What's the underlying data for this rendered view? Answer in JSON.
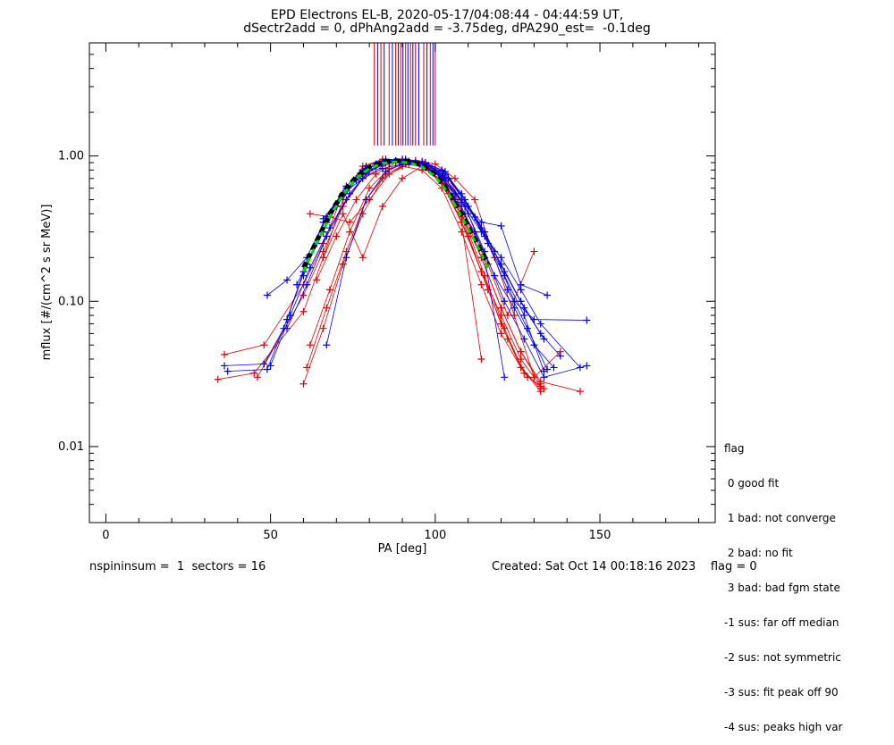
{
  "header": {
    "title_line1": "EPD Electrons EL-B, 2020-05-17/04:08:44 - 04:44:59 UT,",
    "title_line2": "dSectr2add = 0, dPhAng2add = -3.75deg, dPA290_est=  -0.1deg"
  },
  "chart_data": {
    "type": "line",
    "xlabel": "PA [deg]",
    "ylabel": "mflux [#/(cm^2 s sr MeV)]",
    "xlim": [
      -5,
      185
    ],
    "ylim": [
      0.003,
      6
    ],
    "yscale": "log",
    "x_ticks": [
      0,
      50,
      100,
      150
    ],
    "x_tick_labels": [
      "0",
      "50",
      "100",
      "150"
    ],
    "y_ticks": [
      0.01,
      0.1,
      1.0
    ],
    "y_tick_labels": [
      "0.01",
      "0.10",
      "1.00"
    ],
    "grid": false,
    "colors": {
      "red": "#e00000",
      "blue": "#0000dd",
      "green": "#00dd00",
      "black": "#000000"
    },
    "series": [
      {
        "color": "red",
        "x": [
          34,
          45,
          60,
          66,
          72,
          78,
          84,
          90,
          96,
          102,
          108,
          114,
          120,
          126,
          132
        ],
        "y": [
          0.029,
          0.032,
          0.085,
          0.2,
          0.5,
          0.85,
          0.95,
          0.93,
          0.9,
          0.75,
          0.38,
          0.16,
          0.07,
          0.035,
          0.024
        ]
      },
      {
        "color": "red",
        "x": [
          36,
          48,
          60,
          66,
          72,
          78,
          84,
          90,
          96,
          102,
          108,
          114,
          120,
          126,
          132
        ],
        "y": [
          0.043,
          0.05,
          0.13,
          0.25,
          0.55,
          0.8,
          0.9,
          0.9,
          0.85,
          0.68,
          0.35,
          0.16,
          0.08,
          0.04,
          0.026
        ]
      },
      {
        "color": "red",
        "x": [
          46,
          60,
          66,
          72,
          78,
          84,
          90,
          96,
          102,
          108,
          114,
          120,
          126,
          132,
          144
        ],
        "y": [
          0.03,
          0.11,
          0.22,
          0.45,
          0.7,
          0.85,
          0.95,
          0.92,
          0.72,
          0.4,
          0.2,
          0.09,
          0.045,
          0.028,
          0.024
        ]
      },
      {
        "color": "red",
        "x": [
          60,
          66,
          72,
          78,
          84,
          90,
          96,
          102,
          108,
          114,
          120,
          126,
          132
        ],
        "y": [
          0.027,
          0.065,
          0.18,
          0.4,
          0.7,
          0.85,
          0.8,
          0.6,
          0.3,
          0.13,
          0.06,
          0.035,
          0.025
        ]
      },
      {
        "color": "red",
        "x": [
          61,
          67,
          73,
          79,
          85,
          91,
          97,
          103,
          109,
          115,
          121,
          127,
          133
        ],
        "y": [
          0.035,
          0.09,
          0.22,
          0.5,
          0.75,
          0.88,
          0.85,
          0.62,
          0.35,
          0.15,
          0.065,
          0.032,
          0.025
        ]
      },
      {
        "color": "red",
        "x": [
          62,
          68,
          74,
          80,
          86,
          92,
          98,
          104,
          110,
          116,
          122,
          128
        ],
        "y": [
          0.05,
          0.12,
          0.3,
          0.6,
          0.82,
          0.9,
          0.82,
          0.55,
          0.28,
          0.12,
          0.055,
          0.03
        ]
      },
      {
        "color": "red",
        "x": [
          60,
          66,
          72,
          78,
          84,
          90,
          96,
          102,
          108,
          114,
          120,
          126,
          132
        ],
        "y": [
          0.16,
          0.3,
          0.55,
          0.8,
          0.92,
          0.95,
          0.9,
          0.78,
          0.45,
          0.2,
          0.09,
          0.045,
          0.027
        ]
      },
      {
        "color": "red",
        "x": [
          62,
          68,
          74,
          80,
          86,
          92,
          98,
          104,
          110,
          116,
          122,
          130
        ],
        "y": [
          0.4,
          0.38,
          0.35,
          0.5,
          0.75,
          0.88,
          0.85,
          0.7,
          0.4,
          0.18,
          0.08,
          0.22
        ]
      },
      {
        "color": "red",
        "x": [
          64,
          70,
          76,
          82,
          88,
          94,
          100,
          106,
          112,
          118,
          124,
          130,
          138
        ],
        "y": [
          0.14,
          0.28,
          0.5,
          0.75,
          0.9,
          0.93,
          0.88,
          0.7,
          0.5,
          0.2,
          0.08,
          0.03,
          0.045
        ]
      },
      {
        "color": "red",
        "x": [
          66,
          72,
          78,
          84,
          90,
          96,
          102,
          108,
          114
        ],
        "y": [
          0.2,
          0.4,
          0.2,
          0.45,
          0.7,
          0.85,
          0.65,
          0.35,
          0.04
        ]
      },
      {
        "color": "blue",
        "x": [
          36,
          48,
          54,
          60,
          66,
          72,
          78,
          84,
          90,
          96,
          102,
          108,
          114,
          120,
          126,
          132,
          138
        ],
        "y": [
          0.036,
          0.037,
          0.065,
          0.16,
          0.3,
          0.55,
          0.8,
          0.9,
          0.93,
          0.9,
          0.8,
          0.55,
          0.32,
          0.18,
          0.1,
          0.06,
          0.042
        ]
      },
      {
        "color": "blue",
        "x": [
          37,
          49,
          55,
          61,
          67,
          73,
          79,
          85,
          91,
          97,
          103,
          109,
          115,
          121,
          127,
          133
        ],
        "y": [
          0.033,
          0.034,
          0.075,
          0.18,
          0.35,
          0.6,
          0.82,
          0.92,
          0.95,
          0.9,
          0.78,
          0.5,
          0.3,
          0.16,
          0.09,
          0.055
        ]
      },
      {
        "color": "blue",
        "x": [
          49,
          55,
          61,
          67,
          73,
          79,
          85,
          91,
          97,
          103,
          109,
          115,
          121,
          127,
          133
        ],
        "y": [
          0.11,
          0.14,
          0.2,
          0.38,
          0.62,
          0.85,
          0.95,
          0.93,
          0.88,
          0.75,
          0.5,
          0.28,
          0.15,
          0.08,
          0.033
        ]
      },
      {
        "color": "blue",
        "x": [
          50,
          56,
          62,
          68,
          74,
          80,
          86,
          92,
          98,
          104,
          110,
          116,
          122,
          128,
          134
        ],
        "y": [
          0.036,
          0.08,
          0.17,
          0.32,
          0.55,
          0.8,
          0.9,
          0.92,
          0.86,
          0.7,
          0.45,
          0.25,
          0.12,
          0.065,
          0.034
        ]
      },
      {
        "color": "blue",
        "x": [
          58,
          64,
          70,
          76,
          82,
          88,
          94,
          100,
          106,
          112,
          118,
          124,
          130,
          136
        ],
        "y": [
          0.13,
          0.25,
          0.45,
          0.7,
          0.88,
          0.93,
          0.9,
          0.78,
          0.5,
          0.3,
          0.15,
          0.09,
          0.05,
          0.035
        ]
      },
      {
        "color": "blue",
        "x": [
          60,
          66,
          72,
          78,
          84,
          90,
          96,
          102,
          108,
          114,
          120,
          126,
          132,
          144
        ],
        "y": [
          0.15,
          0.35,
          0.55,
          0.75,
          0.88,
          0.9,
          0.85,
          0.72,
          0.48,
          0.3,
          0.2,
          0.12,
          0.07,
          0.035
        ]
      },
      {
        "color": "blue",
        "x": [
          66,
          72,
          78,
          84,
          90,
          96,
          102,
          108,
          114,
          120,
          126,
          134
        ],
        "y": [
          0.37,
          0.55,
          0.7,
          0.82,
          0.88,
          0.85,
          0.75,
          0.5,
          0.35,
          0.33,
          0.13,
          0.11
        ]
      },
      {
        "color": "blue",
        "x": [
          67,
          73,
          79,
          85,
          91,
          97,
          103,
          109,
          115,
          121,
          127,
          133,
          146
        ],
        "y": [
          0.05,
          0.2,
          0.5,
          0.78,
          0.9,
          0.88,
          0.7,
          0.45,
          0.22,
          0.1,
          0.055,
          0.03,
          0.036
        ]
      },
      {
        "color": "blue",
        "x": [
          64,
          70,
          76,
          82,
          88,
          94,
          100,
          106,
          112,
          118,
          124,
          130,
          146
        ],
        "y": [
          0.25,
          0.45,
          0.68,
          0.85,
          0.92,
          0.9,
          0.78,
          0.55,
          0.38,
          0.22,
          0.1,
          0.075,
          0.074
        ]
      },
      {
        "color": "blue",
        "x": [
          55,
          61,
          67,
          73,
          79,
          85,
          91,
          97,
          103,
          109,
          115,
          121
        ],
        "y": [
          0.065,
          0.13,
          0.28,
          0.5,
          0.75,
          0.9,
          0.92,
          0.85,
          0.68,
          0.4,
          0.2,
          0.03
        ]
      }
    ],
    "fit_black": {
      "x": [
        60,
        64,
        68,
        72,
        76,
        80,
        84,
        88,
        92,
        96,
        100,
        104,
        108,
        112,
        116
      ],
      "y": [
        0.17,
        0.26,
        0.4,
        0.56,
        0.72,
        0.84,
        0.91,
        0.93,
        0.92,
        0.86,
        0.74,
        0.57,
        0.4,
        0.27,
        0.18
      ]
    },
    "fit_green": {
      "x": [
        60,
        64,
        68,
        72,
        76,
        80,
        84,
        88,
        92,
        96,
        100,
        104,
        108,
        112,
        116
      ],
      "y": [
        0.16,
        0.25,
        0.38,
        0.54,
        0.7,
        0.82,
        0.89,
        0.91,
        0.9,
        0.84,
        0.72,
        0.55,
        0.38,
        0.26,
        0.17
      ]
    },
    "vlines": {
      "y_range": [
        1.18,
        6
      ],
      "red": [
        81.5,
        83.5,
        86,
        88,
        89.5,
        91,
        92.5,
        94,
        96.5,
        98.5,
        100
      ],
      "blue": [
        82.5,
        84.5,
        87,
        88.8,
        90.2,
        91.7,
        93.2,
        95,
        97.5,
        99.3
      ]
    }
  },
  "legend": {
    "title": "flag",
    "items": [
      " 0 good fit",
      " 1 bad: not converge",
      " 2 bad: no fit",
      " 3 bad: bad fgm state",
      "-1 sus: far off median",
      "-2 sus: not symmetric",
      "-3 sus: fit peak off 90",
      "-4 sus: peaks high var"
    ]
  },
  "footer": {
    "left": "nspininsum =  1  sectors = 16",
    "right": "Created: Sat Oct 14 00:18:16 2023    flag = 0"
  }
}
